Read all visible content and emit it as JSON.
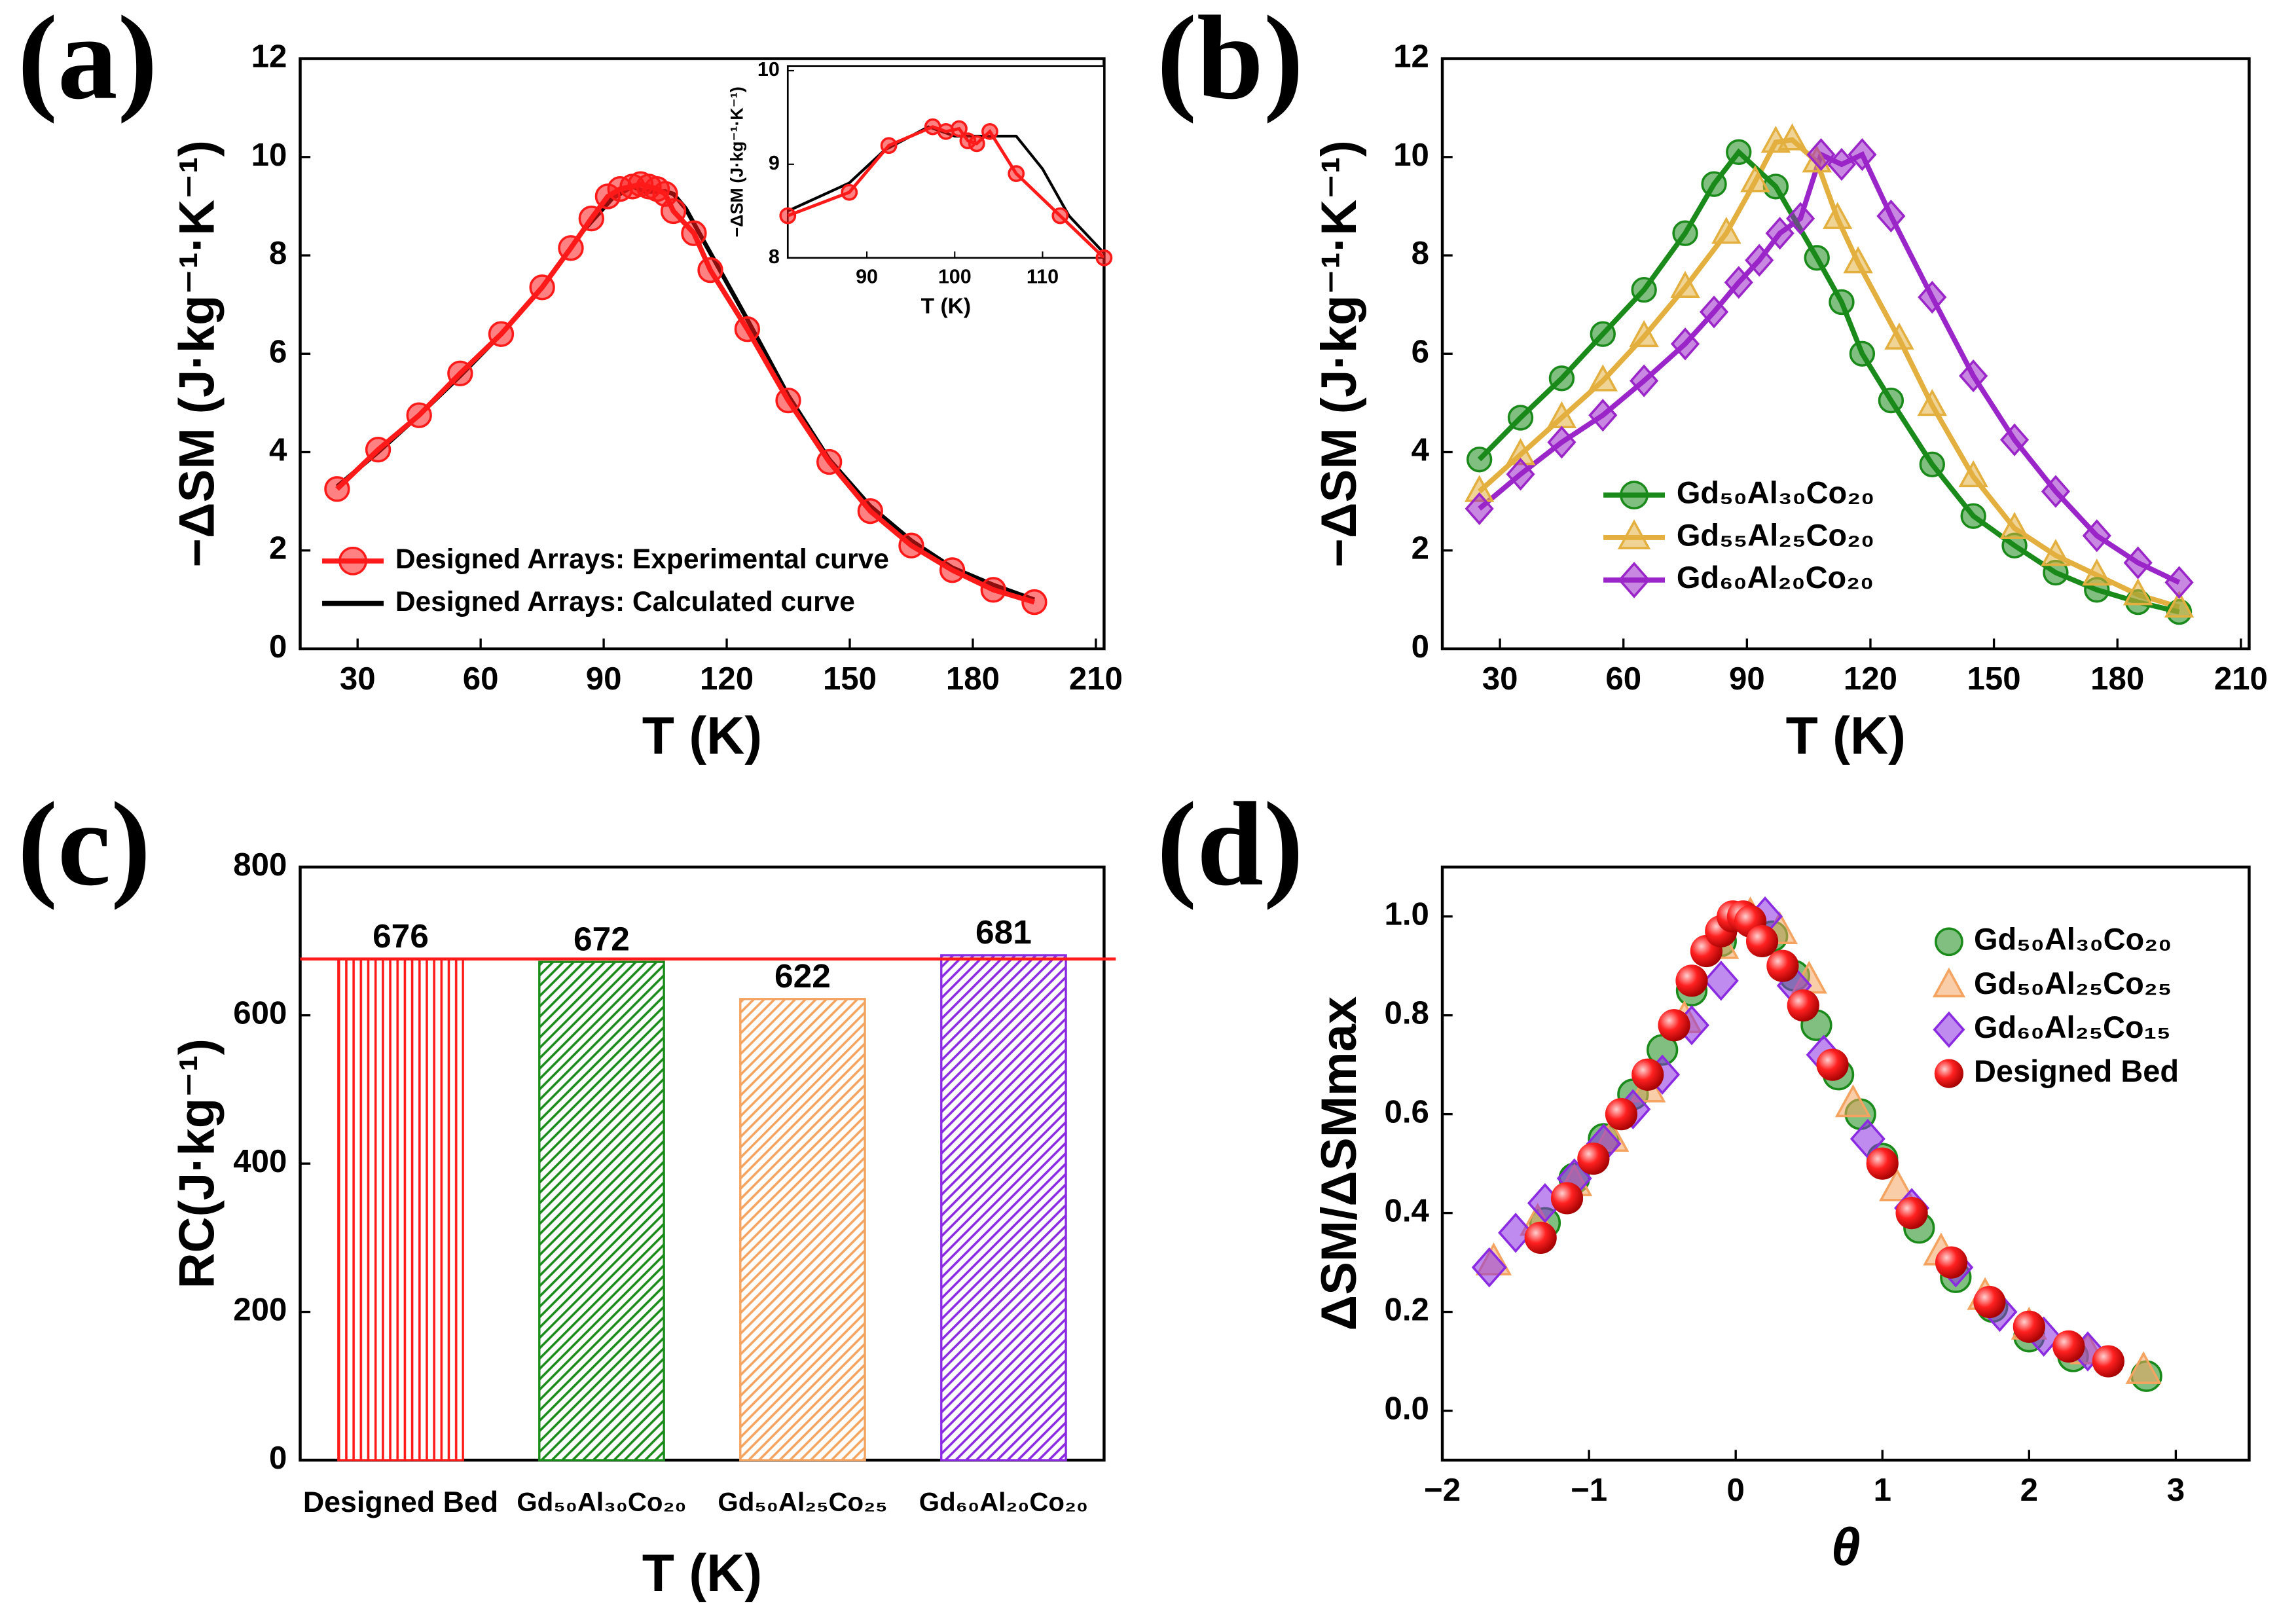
{
  "chart_data": [
    {
      "label": "(a)",
      "type": "line",
      "xlabel": "T (K)",
      "ylabel": "−ΔSM (J·kg⁻¹·K⁻¹)",
      "xlim": [
        16,
        212
      ],
      "ylim": [
        0,
        12
      ],
      "xticks": [
        30,
        60,
        90,
        120,
        150,
        180,
        210
      ],
      "yticks": [
        0,
        2,
        4,
        6,
        8,
        10,
        12
      ],
      "series": [
        {
          "name": "Designed Arrays: Experimental curve",
          "color": "#ff1a1a",
          "marker": "circle",
          "x": [
            25,
            35,
            45,
            55,
            65,
            75,
            82,
            87,
            91,
            94,
            97,
            99,
            101,
            103,
            105,
            107,
            112,
            116,
            125,
            135,
            145,
            155,
            165,
            175,
            185,
            195
          ],
          "values": [
            3.25,
            4.05,
            4.75,
            5.6,
            6.4,
            7.35,
            8.15,
            8.75,
            9.2,
            9.35,
            9.4,
            9.45,
            9.4,
            9.35,
            9.25,
            8.9,
            8.45,
            7.7,
            6.5,
            5.05,
            3.8,
            2.8,
            2.1,
            1.6,
            1.2,
            0.95
          ]
        },
        {
          "name": "Designed Arrays: Calculated curve",
          "color": "#000000",
          "marker": "none",
          "x": [
            25,
            35,
            45,
            55,
            65,
            75,
            85,
            92,
            97,
            100,
            105,
            107,
            110,
            115,
            125,
            135,
            145,
            155,
            165,
            175,
            185,
            195
          ],
          "values": [
            3.3,
            4.0,
            4.75,
            5.55,
            6.4,
            7.35,
            8.5,
            9.15,
            9.4,
            9.3,
            9.3,
            9.25,
            8.95,
            8.2,
            6.7,
            5.15,
            3.85,
            2.9,
            2.2,
            1.65,
            1.3,
            1.0
          ]
        }
      ]
    },
    {
      "type": "line",
      "xlabel": "T (K)",
      "ylabel": "−ΔSM (J·kg⁻¹·K⁻¹)",
      "xlim": [
        81,
        117
      ],
      "ylim": [
        8,
        10.05
      ],
      "xticks": [
        90,
        100,
        110
      ],
      "yticks": [
        8,
        9,
        10
      ],
      "series": [
        {
          "color": "#ff1a1a",
          "marker": "circle",
          "x": [
            81,
            88,
            92.5,
            97.5,
            99,
            100.5,
            101.5,
            102.5,
            104,
            107,
            112,
            117
          ],
          "values": [
            8.45,
            8.7,
            9.2,
            9.4,
            9.35,
            9.38,
            9.25,
            9.22,
            9.35,
            8.9,
            8.45,
            8.0
          ]
        },
        {
          "color": "#000000",
          "marker": "none",
          "x": [
            81,
            88,
            92,
            97,
            100,
            105,
            107,
            110,
            113,
            117
          ],
          "values": [
            8.5,
            8.8,
            9.15,
            9.4,
            9.3,
            9.3,
            9.3,
            8.95,
            8.45,
            8.05
          ]
        }
      ]
    },
    {
      "label": "(b)",
      "type": "line",
      "xlabel": "T (K)",
      "ylabel": "−ΔSM (J·kg⁻¹·K⁻¹)",
      "xlim": [
        16,
        212
      ],
      "ylim": [
        0,
        12
      ],
      "xticks": [
        30,
        60,
        90,
        120,
        150,
        180,
        210
      ],
      "yticks": [
        0,
        2,
        4,
        6,
        8,
        10,
        12
      ],
      "series": [
        {
          "name": "Gd₅₀Al₃₀Co₂₀",
          "color": "#1a8a1a",
          "marker": "circle",
          "x": [
            25,
            35,
            45,
            55,
            65,
            75,
            82,
            88,
            97,
            107,
            113,
            118,
            125,
            135,
            145,
            155,
            165,
            175,
            185,
            195
          ],
          "values": [
            3.85,
            4.7,
            5.5,
            6.4,
            7.3,
            8.45,
            9.45,
            10.1,
            9.4,
            7.95,
            7.05,
            6.0,
            5.05,
            3.75,
            2.7,
            2.1,
            1.55,
            1.2,
            0.95,
            0.75
          ]
        },
        {
          "name": "Gd₅₅Al₂₅Co₂₀",
          "color": "#e3b040",
          "marker": "triangle",
          "x": [
            25,
            35,
            45,
            55,
            65,
            75,
            85,
            92,
            97,
            101,
            107,
            112,
            117,
            127,
            135,
            145,
            155,
            165,
            175,
            185,
            195
          ],
          "values": [
            3.2,
            3.95,
            4.7,
            5.45,
            6.35,
            7.35,
            8.45,
            9.5,
            10.3,
            10.35,
            9.9,
            8.75,
            7.85,
            6.3,
            4.95,
            3.5,
            2.45,
            1.9,
            1.5,
            1.1,
            0.85
          ]
        },
        {
          "name": "Gd₆₀Al₂₀Co₂₀",
          "color": "#9a25c8",
          "marker": "diamond",
          "x": [
            25,
            35,
            45,
            55,
            65,
            75,
            82,
            88,
            93,
            98,
            103,
            108,
            113,
            118,
            125,
            135,
            145,
            155,
            165,
            175,
            185,
            195
          ],
          "values": [
            2.85,
            3.55,
            4.2,
            4.75,
            5.45,
            6.2,
            6.85,
            7.45,
            7.9,
            8.45,
            8.75,
            10.05,
            9.85,
            10.05,
            8.8,
            7.15,
            5.55,
            4.25,
            3.2,
            2.3,
            1.75,
            1.35
          ]
        }
      ]
    },
    {
      "label": "(c)",
      "type": "bar",
      "xlabel": "T (K)",
      "ylabel": "RC(J·kg⁻¹)",
      "ylim": [
        0,
        800
      ],
      "yticks": [
        0,
        200,
        400,
        600,
        800
      ],
      "categories": [
        "Designed Bed",
        "Gd₅₀Al₃₀Co₂₀",
        "Gd₅₀Al₂₅Co₂₅",
        "Gd₆₀Al₂₀Co₂₀"
      ],
      "values": [
        676,
        672,
        622,
        681
      ],
      "colors": [
        "#ff1a1a",
        "#1a8a1a",
        "#f4a460",
        "#8a2be2"
      ],
      "value_label_colors": [
        "#ff1a1a",
        "#1a8a1a",
        "#f4a460",
        "#e020e0"
      ],
      "reference_line": 676,
      "reference_color": "#ff1a1a"
    },
    {
      "label": "(d)",
      "type": "scatter",
      "xlabel": "θ",
      "ylabel": "ΔSM/ΔSMmax",
      "xlim": [
        -2,
        3.5
      ],
      "ylim": [
        -0.1,
        1.1
      ],
      "xticks": [
        {
          "value": -2,
          "label": "−2"
        },
        {
          "value": -1,
          "label": "−1"
        },
        0,
        1,
        2,
        3
      ],
      "yticks": [
        {
          "value": 0,
          "label": "0.0"
        },
        0.2,
        0.4,
        0.6,
        0.8,
        {
          "value": 1,
          "label": "1.0"
        }
      ],
      "series": [
        {
          "name": "Gd₅₀Al₃₀Co₂₀",
          "color": "#1a8a1a",
          "marker": "circle",
          "x": [
            -1.3,
            -1.1,
            -0.9,
            -0.7,
            -0.5,
            -0.3,
            -0.1,
            0.05,
            0.25,
            0.4,
            0.55,
            0.7,
            0.85,
            1.0,
            1.25,
            1.5,
            1.75,
            2.0,
            2.3,
            2.8
          ],
          "values": [
            0.38,
            0.47,
            0.55,
            0.64,
            0.73,
            0.85,
            0.95,
            1.0,
            0.96,
            0.88,
            0.78,
            0.68,
            0.6,
            0.51,
            0.37,
            0.27,
            0.21,
            0.15,
            0.11,
            0.07
          ]
        },
        {
          "name": "Gd₅₀Al₂₅Co₂₅",
          "color": "#f4a460",
          "marker": "triangle",
          "x": [
            -1.65,
            -1.35,
            -1.1,
            -0.85,
            -0.6,
            -0.35,
            -0.1,
            0.1,
            0.3,
            0.5,
            0.8,
            1.1,
            1.4,
            1.7,
            2.0,
            2.4,
            2.78
          ],
          "values": [
            0.3,
            0.38,
            0.46,
            0.55,
            0.65,
            0.79,
            0.94,
            1.0,
            0.97,
            0.87,
            0.62,
            0.45,
            0.32,
            0.23,
            0.17,
            0.12,
            0.08
          ]
        },
        {
          "name": "Gd₆₀Al₂₅Co₁₅",
          "color": "#8a2be2",
          "marker": "diamond",
          "x": [
            -1.68,
            -1.5,
            -1.3,
            -1.1,
            -0.9,
            -0.7,
            -0.5,
            -0.3,
            -0.1,
            0.2,
            0.4,
            0.6,
            0.9,
            1.2,
            1.5,
            1.8,
            2.1,
            2.4
          ],
          "values": [
            0.29,
            0.36,
            0.42,
            0.47,
            0.54,
            0.61,
            0.68,
            0.78,
            0.87,
            1.0,
            0.86,
            0.72,
            0.55,
            0.41,
            0.29,
            0.2,
            0.15,
            0.12
          ]
        },
        {
          "name": "Designed Bed",
          "color": "#ff1a1a",
          "marker": "ball",
          "x": [
            -1.33,
            -1.15,
            -0.97,
            -0.78,
            -0.6,
            -0.42,
            -0.3,
            -0.2,
            -0.1,
            -0.02,
            0.05,
            0.1,
            0.18,
            0.32,
            0.46,
            0.66,
            1.0,
            1.2,
            1.47,
            1.73,
            2.0,
            2.27,
            2.54
          ],
          "values": [
            0.35,
            0.43,
            0.51,
            0.6,
            0.68,
            0.78,
            0.87,
            0.93,
            0.97,
            1.0,
            1.0,
            0.99,
            0.95,
            0.9,
            0.82,
            0.7,
            0.5,
            0.4,
            0.3,
            0.22,
            0.17,
            0.13,
            0.1
          ]
        }
      ]
    }
  ]
}
